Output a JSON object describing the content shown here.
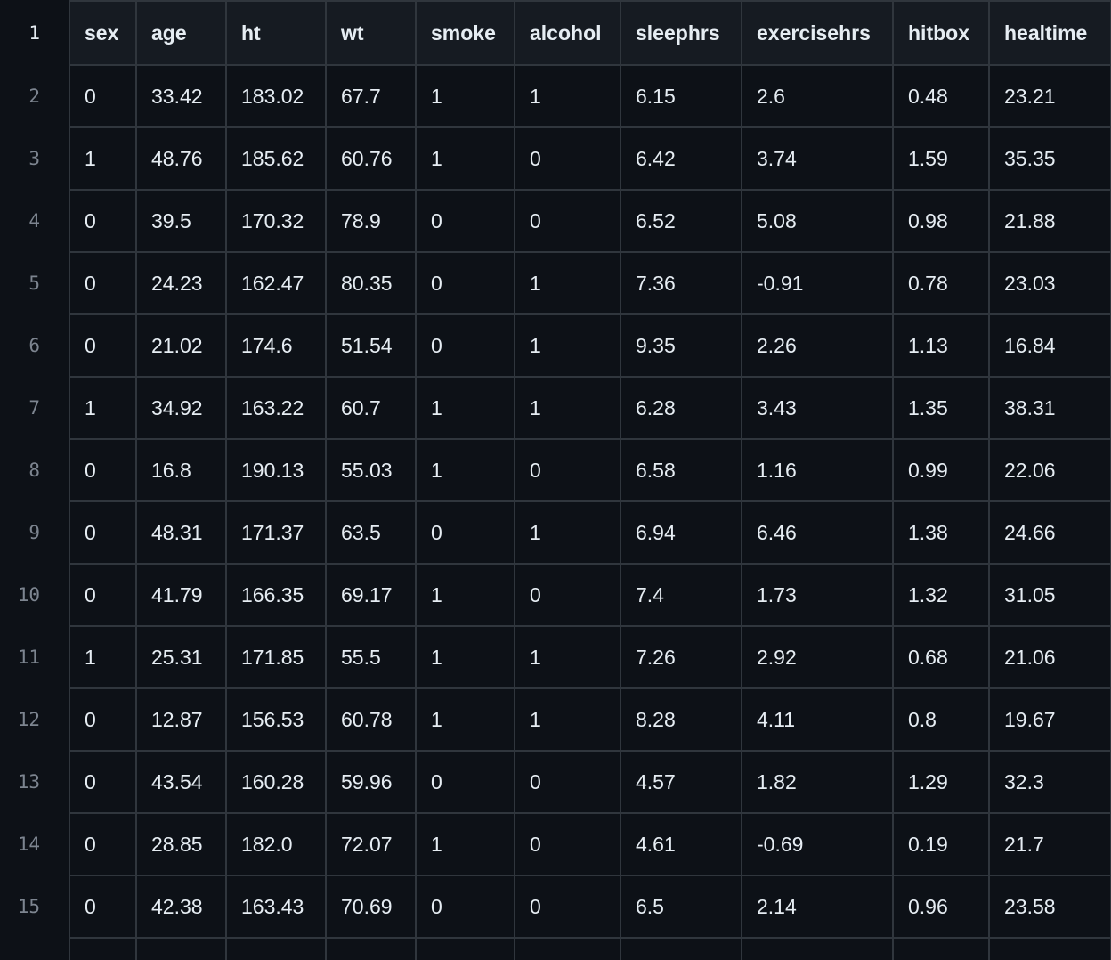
{
  "table": {
    "header_line_number": "1",
    "columns": [
      "sex",
      "age",
      "ht",
      "wt",
      "smoke",
      "alcohol",
      "sleephrs",
      "exercisehrs",
      "hitbox",
      "healtime"
    ],
    "rows": [
      {
        "line": "2",
        "cells": [
          "0",
          "33.42",
          "183.02",
          "67.7",
          "1",
          "1",
          "6.15",
          "2.6",
          "0.48",
          "23.21"
        ]
      },
      {
        "line": "3",
        "cells": [
          "1",
          "48.76",
          "185.62",
          "60.76",
          "1",
          "0",
          "6.42",
          "3.74",
          "1.59",
          "35.35"
        ]
      },
      {
        "line": "4",
        "cells": [
          "0",
          "39.5",
          "170.32",
          "78.9",
          "0",
          "0",
          "6.52",
          "5.08",
          "0.98",
          "21.88"
        ]
      },
      {
        "line": "5",
        "cells": [
          "0",
          "24.23",
          "162.47",
          "80.35",
          "0",
          "1",
          "7.36",
          "-0.91",
          "0.78",
          "23.03"
        ]
      },
      {
        "line": "6",
        "cells": [
          "0",
          "21.02",
          "174.6",
          "51.54",
          "0",
          "1",
          "9.35",
          "2.26",
          "1.13",
          "16.84"
        ]
      },
      {
        "line": "7",
        "cells": [
          "1",
          "34.92",
          "163.22",
          "60.7",
          "1",
          "1",
          "6.28",
          "3.43",
          "1.35",
          "38.31"
        ]
      },
      {
        "line": "8",
        "cells": [
          "0",
          "16.8",
          "190.13",
          "55.03",
          "1",
          "0",
          "6.58",
          "1.16",
          "0.99",
          "22.06"
        ]
      },
      {
        "line": "9",
        "cells": [
          "0",
          "48.31",
          "171.37",
          "63.5",
          "0",
          "1",
          "6.94",
          "6.46",
          "1.38",
          "24.66"
        ]
      },
      {
        "line": "10",
        "cells": [
          "0",
          "41.79",
          "166.35",
          "69.17",
          "1",
          "0",
          "7.4",
          "1.73",
          "1.32",
          "31.05"
        ]
      },
      {
        "line": "11",
        "cells": [
          "1",
          "25.31",
          "171.85",
          "55.5",
          "1",
          "1",
          "7.26",
          "2.92",
          "0.68",
          "21.06"
        ]
      },
      {
        "line": "12",
        "cells": [
          "0",
          "12.87",
          "156.53",
          "60.78",
          "1",
          "1",
          "8.28",
          "4.11",
          "0.8",
          "19.67"
        ]
      },
      {
        "line": "13",
        "cells": [
          "0",
          "43.54",
          "160.28",
          "59.96",
          "0",
          "0",
          "4.57",
          "1.82",
          "1.29",
          "32.3"
        ]
      },
      {
        "line": "14",
        "cells": [
          "0",
          "28.85",
          "182.0",
          "72.07",
          "1",
          "0",
          "4.61",
          "-0.69",
          "0.19",
          "21.7"
        ]
      },
      {
        "line": "15",
        "cells": [
          "0",
          "42.38",
          "163.43",
          "70.69",
          "0",
          "0",
          "6.5",
          "2.14",
          "0.96",
          "23.58"
        ]
      }
    ]
  },
  "colors": {
    "background": "#0d1117",
    "header_background": "#161b22",
    "border": "#30363d",
    "text": "#e6edf3",
    "line_number": "#7d8590"
  }
}
